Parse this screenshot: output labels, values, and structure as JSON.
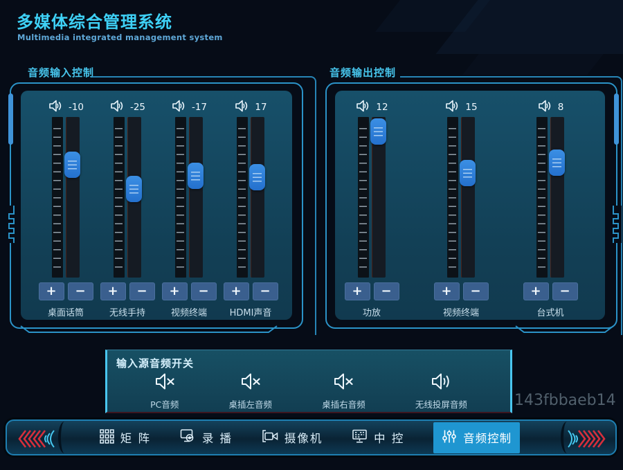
{
  "app": {
    "title": "多媒体综合管理系统",
    "subtitle": "Multimedia integrated management system",
    "watermark": "143fbbaeb14"
  },
  "panels": [
    {
      "id": "input",
      "title": "音频输入控制",
      "channels": [
        {
          "name": "桌面话筒",
          "value": "-10",
          "position_pct": 26,
          "icon": "speaker-icon"
        },
        {
          "name": "无线手持",
          "value": "-25",
          "position_pct": 44,
          "icon": "speaker-icon"
        },
        {
          "name": "视频终端",
          "value": "-17",
          "position_pct": 34,
          "icon": "speaker-icon"
        },
        {
          "name": "HDMI声音",
          "value": "17",
          "position_pct": 35,
          "icon": "speaker-icon"
        }
      ]
    },
    {
      "id": "output",
      "title": "音频输出控制",
      "channels": [
        {
          "name": "功放",
          "value": "12",
          "position_pct": 1,
          "icon": "speaker-icon"
        },
        {
          "name": "视频终端",
          "value": "15",
          "position_pct": 32,
          "icon": "speaker-icon"
        },
        {
          "name": "台式机",
          "value": "8",
          "position_pct": 24,
          "icon": "speaker-icon"
        }
      ]
    }
  ],
  "switch_panel": {
    "title": "输入源音频开关",
    "items": [
      {
        "label": "PC音频",
        "muted": true,
        "icon": "speaker-mute-icon"
      },
      {
        "label": "桌插左音频",
        "muted": true,
        "icon": "speaker-mute-icon"
      },
      {
        "label": "桌插右音频",
        "muted": true,
        "icon": "speaker-mute-icon"
      },
      {
        "label": "无线投屏音频",
        "muted": false,
        "icon": "speaker-on-icon"
      }
    ]
  },
  "nav": {
    "tabs": [
      {
        "label": "矩 阵",
        "icon": "grid-icon",
        "active": false
      },
      {
        "label": "录 播",
        "icon": "recorder-icon",
        "active": false
      },
      {
        "label": "摄像机",
        "icon": "camera-icon",
        "active": false
      },
      {
        "label": "中 控",
        "icon": "console-icon",
        "active": false
      },
      {
        "label": "音频控制",
        "icon": "mixer-icon",
        "active": true
      }
    ]
  },
  "controls": {
    "increase_label": "+",
    "decrease_label": "−"
  },
  "colors": {
    "title_cyan": "#3ed1f6",
    "frame_cyan": "#2b93c8",
    "panel_teal": "#17506a",
    "thumb_blue": "#2f81da",
    "button_blue": "#3a5f8e",
    "active_tab_blue": "#1f96d1",
    "chevron_red": "#d62f3c"
  }
}
